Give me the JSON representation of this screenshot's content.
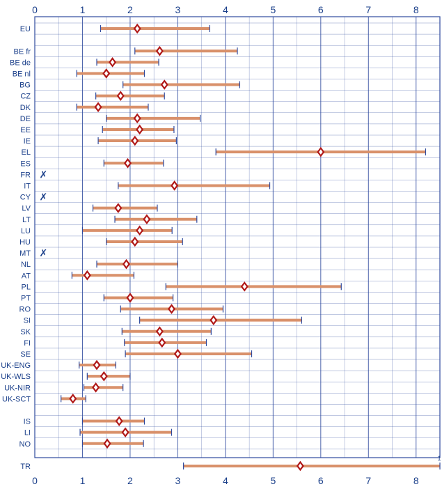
{
  "chart_data": {
    "type": "range-dot",
    "title": "",
    "xlabel": "",
    "ylabel": "",
    "xlim": [
      0,
      8.5
    ],
    "x_ticks": [
      0,
      1,
      2,
      3,
      4,
      5,
      6,
      7,
      8
    ],
    "grid": true,
    "colors": {
      "range": "#d9916b",
      "marker": "#b01818",
      "grid": "#2e4a9e",
      "text": "#1a3f8a",
      "background": "#ffffff"
    },
    "not_available_symbol": "✗",
    "overflow_label": "1",
    "rows": [
      {
        "label": "EU",
        "low": 1.38,
        "value": 2.15,
        "high": 3.67
      },
      {
        "label": "",
        "gap": true
      },
      {
        "label": "BE fr",
        "low": 2.1,
        "value": 2.62,
        "high": 4.25
      },
      {
        "label": "BE de",
        "low": 1.3,
        "value": 1.63,
        "high": 2.6
      },
      {
        "label": "BE nl",
        "low": 0.88,
        "value": 1.5,
        "high": 2.3
      },
      {
        "label": "BG",
        "low": 1.85,
        "value": 2.72,
        "high": 4.3
      },
      {
        "label": "CZ",
        "low": 1.28,
        "value": 1.8,
        "high": 2.72
      },
      {
        "label": "DK",
        "low": 0.88,
        "value": 1.33,
        "high": 2.38
      },
      {
        "label": "DE",
        "low": 1.5,
        "value": 2.15,
        "high": 3.47
      },
      {
        "label": "EE",
        "low": 1.42,
        "value": 2.2,
        "high": 2.92
      },
      {
        "label": "IE",
        "low": 1.33,
        "value": 2.1,
        "high": 2.97
      },
      {
        "label": "EL",
        "low": 3.8,
        "value": 6.0,
        "high": 8.2
      },
      {
        "label": "ES",
        "low": 1.45,
        "value": 1.95,
        "high": 2.7
      },
      {
        "label": "FR",
        "na": true
      },
      {
        "label": "IT",
        "low": 1.75,
        "value": 2.93,
        "high": 4.93
      },
      {
        "label": "CY",
        "na": true
      },
      {
        "label": "LV",
        "low": 1.22,
        "value": 1.75,
        "high": 2.57
      },
      {
        "label": "LT",
        "low": 1.68,
        "value": 2.35,
        "high": 3.4
      },
      {
        "label": "LU",
        "low": 1.0,
        "value": 2.2,
        "high": 2.88
      },
      {
        "label": "HU",
        "low": 1.5,
        "value": 2.1,
        "high": 3.1
      },
      {
        "label": "MT",
        "na": true
      },
      {
        "label": "NL",
        "low": 1.3,
        "value": 1.92,
        "high": 3.0
      },
      {
        "label": "AT",
        "low": 0.78,
        "value": 1.1,
        "high": 2.08
      },
      {
        "label": "PL",
        "low": 2.75,
        "value": 4.4,
        "high": 6.43
      },
      {
        "label": "PT",
        "low": 1.45,
        "value": 2.0,
        "high": 2.9
      },
      {
        "label": "RO",
        "low": 1.8,
        "value": 2.87,
        "high": 3.95
      },
      {
        "label": "SI",
        "low": 2.2,
        "value": 3.75,
        "high": 5.6
      },
      {
        "label": "SK",
        "low": 1.83,
        "value": 2.62,
        "high": 3.7
      },
      {
        "label": "FI",
        "low": 1.88,
        "value": 2.67,
        "high": 3.6
      },
      {
        "label": "SE",
        "low": 1.9,
        "value": 3.0,
        "high": 4.55
      },
      {
        "label": "UK-ENG",
        "low": 0.93,
        "value": 1.3,
        "high": 1.7
      },
      {
        "label": "UK-WLS",
        "low": 1.1,
        "value": 1.45,
        "high": 2.0
      },
      {
        "label": "UK-NIR",
        "low": 1.03,
        "value": 1.28,
        "high": 1.85
      },
      {
        "label": "UK-SCT",
        "low": 0.55,
        "value": 0.8,
        "high": 1.07
      },
      {
        "label": "",
        "gap": true
      },
      {
        "label": "IS",
        "low": 1.0,
        "value": 1.77,
        "high": 2.3
      },
      {
        "label": "LI",
        "low": 0.95,
        "value": 1.9,
        "high": 2.87
      },
      {
        "label": "NO",
        "low": 1.0,
        "value": 1.52,
        "high": 2.28
      },
      {
        "label": "",
        "gap": true
      },
      {
        "label": "TR",
        "low": 3.12,
        "value": 5.57,
        "high": 8.5,
        "overflow": true
      }
    ]
  }
}
